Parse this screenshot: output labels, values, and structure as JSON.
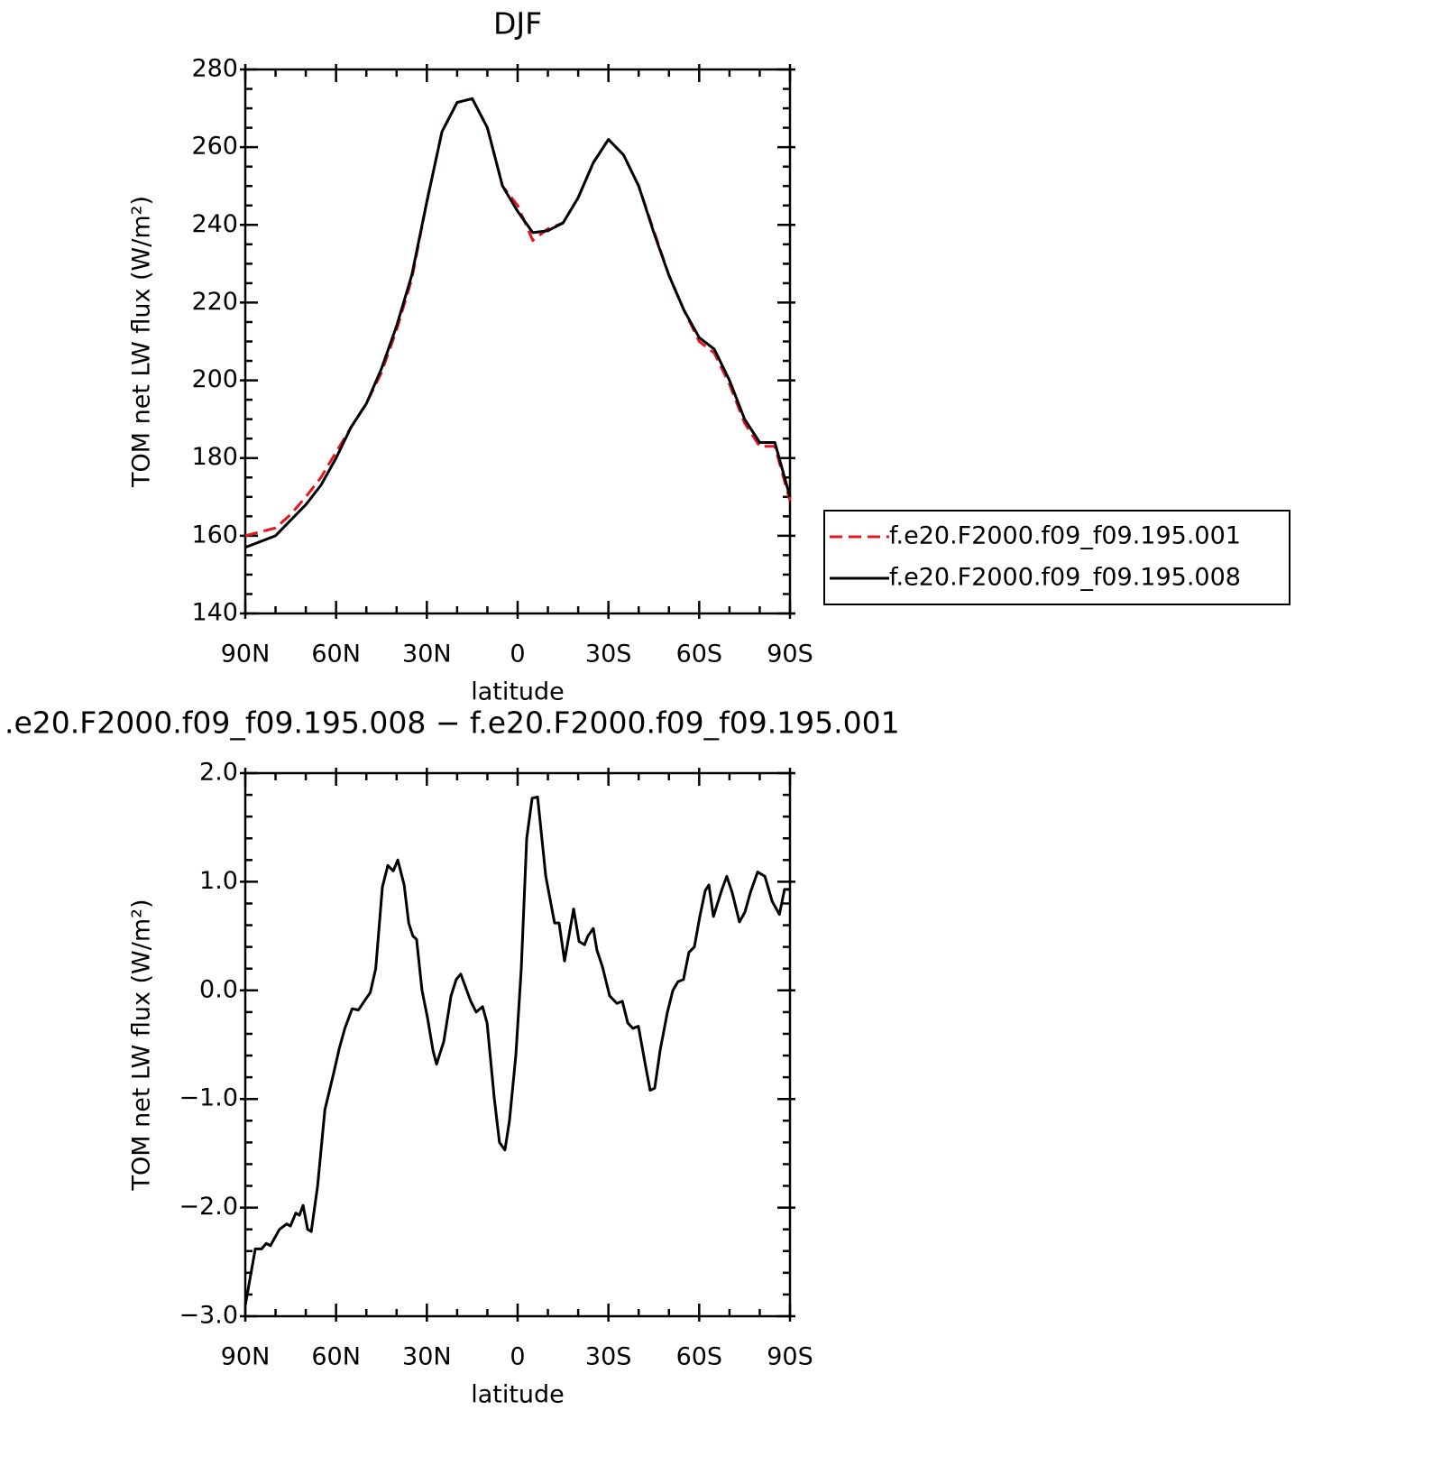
{
  "chart_data": [
    {
      "type": "line",
      "title": "DJF",
      "xlabel": "latitude",
      "ylabel": "TOM net LW flux (W/m²)",
      "x": [
        90,
        85,
        80,
        75,
        70,
        65,
        60,
        55,
        50,
        45,
        40,
        35,
        30,
        25,
        20,
        15,
        10,
        5,
        0,
        -5,
        -10,
        -15,
        -20,
        -25,
        -30,
        -35,
        -40,
        -45,
        -50,
        -55,
        -60,
        -65,
        -70,
        -75,
        -80,
        -85,
        -90
      ],
      "series": [
        {
          "name": "f.e20.F2000.f09_f09.195.001",
          "color": "#e8141e",
          "linestyle": "dashed",
          "values": [
            160,
            161,
            162,
            165.5,
            170,
            175,
            181.5,
            188,
            194,
            202,
            213,
            226,
            246,
            264,
            271.5,
            272.5,
            265,
            250,
            245,
            236,
            239,
            240.5,
            247,
            256,
            262,
            258,
            250,
            238.5,
            227,
            218,
            210,
            207,
            199,
            189,
            183,
            183,
            169
          ]
        },
        {
          "name": "f.e20.F2000.f09_f09.195.008",
          "color": "#000000",
          "linestyle": "solid",
          "values": [
            157,
            158.5,
            160,
            164,
            168,
            173,
            180,
            188,
            194,
            203,
            214,
            227,
            246,
            264,
            271.5,
            272.5,
            265,
            250,
            243.5,
            238,
            238.5,
            240.5,
            247,
            256,
            262,
            258,
            250,
            238,
            227,
            218,
            211,
            208,
            200,
            190,
            184,
            184,
            170
          ]
        }
      ],
      "xlim": [
        90,
        -90
      ],
      "xticks": [
        {
          "value": 90,
          "label": "90N"
        },
        {
          "value": 60,
          "label": "60N"
        },
        {
          "value": 30,
          "label": "30N"
        },
        0,
        {
          "value": -30,
          "label": "30S"
        },
        {
          "value": -60,
          "label": "60S"
        },
        {
          "value": -90,
          "label": "90S"
        }
      ],
      "ylim": [
        140,
        280
      ],
      "yticks": [
        140,
        160,
        180,
        200,
        220,
        240,
        260,
        280
      ],
      "legend": "right"
    },
    {
      "type": "line",
      "title": ".e20.F2000.f09_f09.195.008 − f.e20.F2000.f09_f09.195.001",
      "xlabel": "latitude",
      "ylabel": "TOM net LW flux (W/m²)",
      "x": [
        90,
        86.7,
        84.6,
        83.1,
        81.7,
        78.7,
        76.3,
        75.1,
        73.3,
        72.1,
        70.9,
        69.4,
        68.2,
        66.1,
        63.7,
        60.7,
        58.9,
        57.1,
        54.7,
        52.6,
        50.2,
        48.7,
        46.9,
        44.7,
        42.9,
        41.1,
        39.6,
        37.5,
        36.0,
        34.6,
        33.4,
        31.6,
        29.8,
        28.0,
        26.8,
        24.4,
        22.0,
        20.3,
        18.8,
        15.5,
        13.7,
        11.6,
        10.1,
        7.7,
        6.0,
        4.2,
        2.7,
        0.6,
        -1.2,
        -3.0,
        -4.8,
        -6.6,
        -9.3,
        -12.2,
        -13.7,
        -15.5,
        -18.5,
        -20.3,
        -22.1,
        -23.2,
        -25.0,
        -26.2,
        -28.0,
        -30.4,
        -32.8,
        -34.6,
        -36.4,
        -38.1,
        -39.9,
        -42.3,
        -43.8,
        -45.3,
        -47.1,
        -49.5,
        -51.3,
        -53.0,
        -54.8,
        -56.6,
        -58.4,
        -60.2,
        -62.0,
        -63.2,
        -64.7,
        -67.4,
        -69.1,
        -70.9,
        -73.3,
        -75.1,
        -76.9,
        -79.3,
        -81.7,
        -84.1,
        -86.5,
        -88.2,
        -90
      ],
      "series": [
        {
          "color": "#000000",
          "linestyle": "solid",
          "values": [
            -2.9,
            -2.38,
            -2.38,
            -2.33,
            -2.35,
            -2.2,
            -2.15,
            -2.17,
            -2.05,
            -2.07,
            -1.98,
            -2.2,
            -2.22,
            -1.8,
            -1.1,
            -0.75,
            -0.53,
            -0.35,
            -0.17,
            -0.18,
            -0.08,
            -0.02,
            0.2,
            0.95,
            1.15,
            1.1,
            1.2,
            0.97,
            0.62,
            0.5,
            0.47,
            0.0,
            -0.25,
            -0.55,
            -0.68,
            -0.47,
            -0.05,
            0.1,
            0.15,
            -0.1,
            -0.2,
            -0.15,
            -0.3,
            -1.0,
            -1.4,
            -1.47,
            -1.2,
            -0.6,
            0.2,
            1.4,
            1.77,
            1.78,
            1.05,
            0.62,
            0.62,
            0.27,
            0.75,
            0.45,
            0.42,
            0.5,
            0.57,
            0.37,
            0.22,
            -0.05,
            -0.12,
            -0.1,
            -0.3,
            -0.35,
            -0.33,
            -0.7,
            -0.92,
            -0.9,
            -0.55,
            -0.2,
            0.0,
            0.08,
            0.1,
            0.35,
            0.4,
            0.68,
            0.92,
            0.97,
            0.68,
            0.92,
            1.05,
            0.9,
            0.63,
            0.72,
            0.9,
            1.09,
            1.05,
            0.82,
            0.7,
            0.93,
            0.93
          ]
        }
      ],
      "xlim": [
        90,
        -90
      ],
      "xticks": [
        {
          "value": 90,
          "label": "90N"
        },
        {
          "value": 60,
          "label": "60N"
        },
        {
          "value": 30,
          "label": "30N"
        },
        0,
        {
          "value": -30,
          "label": "30S"
        },
        {
          "value": -60,
          "label": "60S"
        },
        {
          "value": -90,
          "label": "90S"
        }
      ],
      "ylim": [
        -3,
        2
      ],
      "yticks": [
        {
          "value": -3,
          "label": "−3.0"
        },
        {
          "value": -2,
          "label": "−2.0"
        },
        {
          "value": -1,
          "label": "−1.0"
        },
        {
          "value": 0,
          "label": "0.0"
        },
        {
          "value": 1,
          "label": "1.0"
        },
        {
          "value": 2,
          "label": "2.0"
        }
      ]
    }
  ]
}
